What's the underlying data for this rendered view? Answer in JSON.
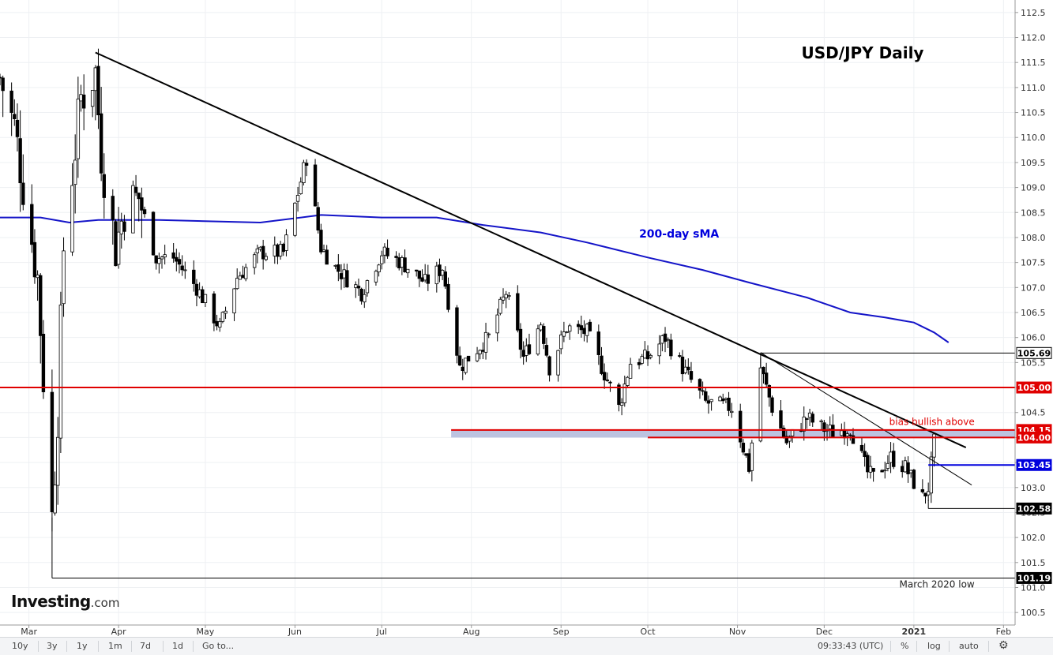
{
  "chart_data": {
    "type": "candlestick",
    "title": "USD/JPY Daily",
    "y_axis": {
      "ticks": [
        112.5,
        112.0,
        111.5,
        111.0,
        110.5,
        110.0,
        109.5,
        109.0,
        108.5,
        108.0,
        107.5,
        107.0,
        106.5,
        106.0,
        105.5,
        105.0,
        104.5,
        104.0,
        103.5,
        103.0,
        102.5,
        102.0,
        101.5,
        101.0,
        100.5
      ],
      "range": [
        100.25,
        112.75
      ],
      "position": "right"
    },
    "x_axis": {
      "labels": [
        "Mar",
        "Apr",
        "May",
        "Jun",
        "Jul",
        "Aug",
        "Sep",
        "Oct",
        "Nov",
        "Dec",
        "2021",
        "Feb"
      ],
      "bold_label": "2021",
      "range": [
        "2020-02-20",
        "2021-02-05"
      ]
    },
    "grid": true,
    "series": [
      {
        "kind": "candles",
        "path": [
          [
            "2020-02-20",
            111.2
          ],
          [
            "2020-02-25",
            110.2
          ],
          [
            "2020-03-04",
            107.2
          ],
          [
            "2020-03-06",
            105.2
          ],
          [
            "2020-03-09",
            102.4
          ],
          [
            "2020-03-11",
            104.5
          ],
          [
            "2020-03-13",
            107.8
          ],
          [
            "2020-03-19",
            110.8
          ],
          [
            "2020-03-24",
            111.3
          ],
          [
            "2020-03-26",
            109.7
          ],
          [
            "2020-03-31",
            107.8
          ],
          [
            "2020-04-03",
            108.6
          ],
          [
            "2020-04-08",
            108.8
          ],
          [
            "2020-04-14",
            107.6
          ],
          [
            "2020-04-20",
            107.6
          ],
          [
            "2020-04-28",
            107.0
          ],
          [
            "2020-05-06",
            106.2
          ],
          [
            "2020-05-12",
            107.2
          ],
          [
            "2020-05-20",
            107.7
          ],
          [
            "2020-05-28",
            107.7
          ],
          [
            "2020-06-05",
            109.6
          ],
          [
            "2020-06-10",
            107.8
          ],
          [
            "2020-06-15",
            107.4
          ],
          [
            "2020-06-24",
            106.9
          ],
          [
            "2020-07-01",
            107.7
          ],
          [
            "2020-07-08",
            107.5
          ],
          [
            "2020-07-16",
            107.1
          ],
          [
            "2020-07-22",
            107.4
          ],
          [
            "2020-07-28",
            105.4
          ],
          [
            "2020-07-31",
            105.6
          ],
          [
            "2020-08-07",
            106.0
          ],
          [
            "2020-08-13",
            106.9
          ],
          [
            "2020-08-19",
            105.6
          ],
          [
            "2020-08-25",
            106.3
          ],
          [
            "2020-08-28",
            105.4
          ],
          [
            "2020-09-03",
            106.2
          ],
          [
            "2020-09-10",
            106.1
          ],
          [
            "2020-09-21",
            104.6
          ],
          [
            "2020-09-25",
            105.5
          ],
          [
            "2020-10-01",
            105.6
          ],
          [
            "2020-10-07",
            106.0
          ],
          [
            "2020-10-13",
            105.4
          ],
          [
            "2020-10-21",
            104.7
          ],
          [
            "2020-10-30",
            104.6
          ],
          [
            "2020-11-05",
            103.4
          ],
          [
            "2020-11-09",
            105.4
          ],
          [
            "2020-11-13",
            104.6
          ],
          [
            "2020-11-18",
            103.9
          ],
          [
            "2020-11-25",
            104.4
          ],
          [
            "2020-11-30",
            104.2
          ],
          [
            "2020-12-04",
            104.1
          ],
          [
            "2020-12-10",
            104.2
          ],
          [
            "2020-12-16",
            103.3
          ],
          [
            "2020-12-18",
            103.2
          ],
          [
            "2020-12-24",
            103.6
          ],
          [
            "2020-12-29",
            103.4
          ],
          [
            "2021-01-04",
            102.8
          ],
          [
            "2021-01-06",
            103.0
          ],
          [
            "2021-01-08",
            103.9
          ]
        ]
      },
      {
        "name": "200-day sMA",
        "kind": "line",
        "color": "#1414c8",
        "points": [
          [
            "2020-02-20",
            108.4
          ],
          [
            "2020-03-05",
            108.4
          ],
          [
            "2020-03-15",
            108.3
          ],
          [
            "2020-03-25",
            108.35
          ],
          [
            "2020-04-15",
            108.35
          ],
          [
            "2020-05-20",
            108.3
          ],
          [
            "2020-06-10",
            108.45
          ],
          [
            "2020-07-01",
            108.4
          ],
          [
            "2020-07-20",
            108.4
          ],
          [
            "2020-08-05",
            108.25
          ],
          [
            "2020-08-25",
            108.1
          ],
          [
            "2020-09-10",
            107.9
          ],
          [
            "2020-10-01",
            107.6
          ],
          [
            "2020-10-20",
            107.35
          ],
          [
            "2020-11-05",
            107.1
          ],
          [
            "2020-11-25",
            106.8
          ],
          [
            "2020-12-10",
            106.5
          ],
          [
            "2020-12-22",
            106.4
          ],
          [
            "2021-01-01",
            106.3
          ],
          [
            "2021-01-08",
            106.1
          ],
          [
            "2021-01-13",
            105.9
          ]
        ]
      }
    ],
    "trendlines": [
      {
        "from": [
          "2020-03-24",
          111.7
        ],
        "to": [
          "2021-01-19",
          103.8
        ],
        "width": "thick"
      },
      {
        "from": [
          "2020-11-09",
          105.7
        ],
        "to": [
          "2021-01-21",
          103.05
        ],
        "width": "thin"
      }
    ],
    "levels": [
      {
        "value": 105.69,
        "label": "105.69",
        "color": "#000000",
        "from": "2020-11-09",
        "style": "thin"
      },
      {
        "value": 105.0,
        "label": "105.00",
        "color": "#e00000",
        "from": "2020-02-20",
        "style": "bold"
      },
      {
        "value": 104.15,
        "label": "104.15",
        "color": "#e00000",
        "from": "2020-07-25",
        "style": "bold"
      },
      {
        "value": 104.0,
        "label": "104.00",
        "color": "#e00000",
        "from": "2020-10-01",
        "style": "bold"
      },
      {
        "value": 103.45,
        "label": "103.45",
        "color": "#0000dd",
        "from": "2021-01-06",
        "style": "bold"
      },
      {
        "value": 102.58,
        "label": "102.58",
        "color": "#000000",
        "from": "2021-01-06",
        "style": "thin"
      },
      {
        "value": 101.19,
        "label": "101.19",
        "color": "#000000",
        "from": "2020-03-09",
        "style": "thin"
      }
    ],
    "zone": {
      "from": "2020-07-25",
      "low": 104.0,
      "high": 104.15,
      "color": "#bcc3e0"
    },
    "annotations": [
      {
        "text": "200-day sMA",
        "at": [
          "2020-09-28",
          108.0
        ],
        "color": "#0000dd"
      },
      {
        "text": "bias bullish above",
        "at": [
          "2021-01-09",
          104.25
        ],
        "color": "#e00000"
      },
      {
        "text": "March 2020 low",
        "at": [
          "2021-01-09",
          101.0
        ],
        "color": "#222222"
      }
    ]
  },
  "logo": {
    "main": "Investing",
    "suffix": ".com"
  },
  "toolbar": {
    "timeframes": [
      "10y",
      "3y",
      "1y",
      "1m",
      "7d",
      "1d",
      "Go to..."
    ],
    "time": "09:33:43 (UTC)",
    "percent": "%",
    "log": "log",
    "auto": "auto",
    "gear_icon": "gear-icon"
  }
}
